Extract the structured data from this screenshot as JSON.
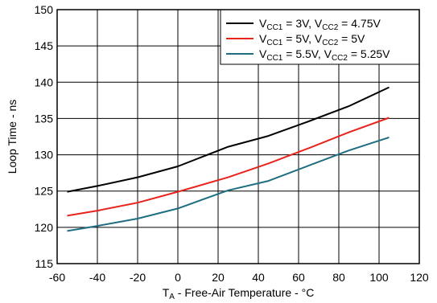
{
  "chart_data": {
    "type": "line",
    "title": "",
    "xlabel": {
      "main": "T",
      "sub": "A",
      "rest": " - Free-Air Temperature - °C"
    },
    "ylabel": "Loop Time - ns",
    "xlim": [
      -60,
      120
    ],
    "ylim": [
      115,
      150
    ],
    "xticks": [
      -60,
      -40,
      -20,
      0,
      20,
      40,
      60,
      80,
      100,
      120
    ],
    "yticks": [
      115,
      120,
      125,
      130,
      135,
      140,
      145,
      150
    ],
    "grid": true,
    "legend_position": "top-right",
    "series": [
      {
        "name": "VCC1 = 3V, VCC2 = 4.75V",
        "legend": [
          "V",
          "CC1",
          " = 3V, V",
          "CC2",
          " = 4.75V"
        ],
        "color": "#000000",
        "x": [
          -55,
          -40,
          -20,
          0,
          25,
          45,
          65,
          85,
          105
        ],
        "y": [
          124.9,
          125.7,
          126.9,
          128.4,
          131.1,
          132.6,
          134.6,
          136.7,
          139.3
        ]
      },
      {
        "name": "VCC1 = 5V, VCC2 = 5V",
        "legend": [
          "V",
          "CC1",
          " = 5V, V",
          "CC2",
          " = 5V"
        ],
        "color": "#e8231c",
        "x": [
          -55,
          -40,
          -20,
          0,
          25,
          45,
          65,
          85,
          105
        ],
        "y": [
          121.6,
          122.3,
          123.4,
          124.9,
          126.9,
          128.8,
          130.9,
          133.1,
          135.1
        ]
      },
      {
        "name": "VCC1 = 5.5V, VCC2 = 5.25V",
        "legend": [
          "V",
          "CC1",
          " = 5.5V, V",
          "CC2",
          " = 5.25V"
        ],
        "color": "#1f6e80",
        "x": [
          -55,
          -40,
          -20,
          0,
          25,
          45,
          65,
          85,
          105
        ],
        "y": [
          119.5,
          120.2,
          121.2,
          122.6,
          125.1,
          126.4,
          128.5,
          130.6,
          132.4
        ]
      }
    ]
  }
}
